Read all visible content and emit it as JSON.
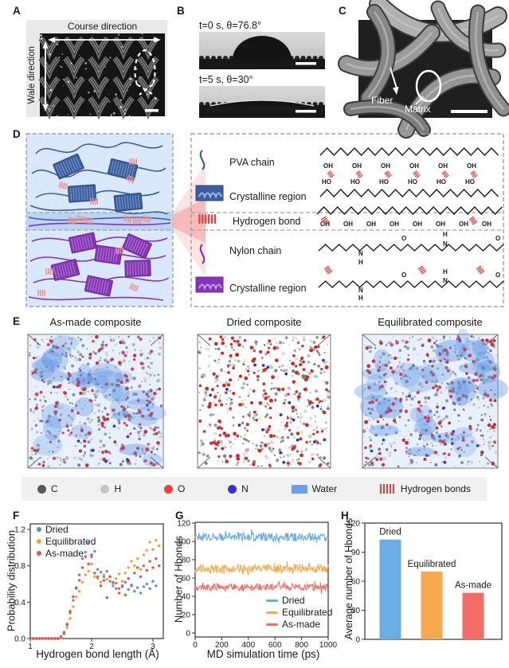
{
  "colors": {
    "dried_blue": "#6aace4",
    "equilibrated_orange": "#f7a94f",
    "asmade_red": "#f26d65",
    "scatter_blue": "#5b8fd4",
    "scatter_orange": "#f0a13a",
    "scatter_red": "#e8534a",
    "pva_blue": "#3d5f9f",
    "nylon_purple": "#8636b4",
    "hbond_pink": "#ef8f93",
    "hbond_red": "#e8413c",
    "water_blue": "#5f96e3",
    "schematic_bg": "#d9e8fa",
    "interface_bg": "#bcd4f2"
  },
  "panels": {
    "A": {
      "label": "A",
      "course_direction": "Course direction",
      "wale_direction": "Wale direction"
    },
    "B": {
      "label": "B",
      "caption_top": "t=0 s, θ=76.8°",
      "caption_bottom": "t=5 s, θ=30°"
    },
    "C": {
      "label": "C",
      "fiber_label": "Fiber",
      "matrix_label": "Matrix"
    },
    "D": {
      "label": "D",
      "legend": [
        {
          "label": "PVA chain"
        },
        {
          "label": "Crystalline region"
        },
        {
          "label": "Hydrogen bond"
        },
        {
          "label": "Nylon chain"
        },
        {
          "label": "Crystalline region"
        }
      ],
      "atom_labels": {
        "oh": "OH",
        "ho": "HO",
        "o": "O",
        "n": "N",
        "h": "H"
      }
    },
    "E": {
      "label": "E",
      "boxes": [
        {
          "title": "As-made composite",
          "water": true
        },
        {
          "title": "Dried composite",
          "water": false
        },
        {
          "title": "Equilibrated composite",
          "water": true
        }
      ],
      "legend": [
        {
          "label": "C",
          "color": "#595959",
          "type": "dot"
        },
        {
          "label": "H",
          "color": "#c6c6c6",
          "type": "dot"
        },
        {
          "label": "O",
          "color": "#e8413c",
          "type": "dot"
        },
        {
          "label": "N",
          "color": "#3333cc",
          "type": "dot"
        },
        {
          "label": "Water",
          "color": "#6b9fe8",
          "type": "rect"
        },
        {
          "label": "Hydrogen bonds",
          "color": "#e8413c",
          "type": "hatch"
        }
      ]
    },
    "F": {
      "label": "F"
    },
    "G": {
      "label": "G"
    },
    "H": {
      "label": "H"
    }
  },
  "chart_data": [
    {
      "id": "F",
      "type": "scatter",
      "xlabel": "Hydrogen bond length (Å)",
      "ylabel": "Probability distribution",
      "xlim": [
        1,
        3.1
      ],
      "ylim": [
        0,
        1.3
      ],
      "xticks": [
        1,
        2,
        3
      ],
      "yticks": [
        0.0,
        0.4,
        0.8,
        1.2
      ],
      "legend_position": "top-left",
      "grid": false,
      "x": [
        1,
        1.05,
        1.1,
        1.15,
        1.2,
        1.25,
        1.3,
        1.35,
        1.4,
        1.45,
        1.5,
        1.55,
        1.6,
        1.65,
        1.7,
        1.75,
        1.8,
        1.85,
        1.9,
        1.95,
        2,
        2.05,
        2.1,
        2.15,
        2.2,
        2.25,
        2.3,
        2.35,
        2.4,
        2.45,
        2.5,
        2.55,
        2.6,
        2.65,
        2.7,
        2.75,
        2.8,
        2.85,
        2.9,
        2.95,
        3,
        3.05,
        3.1
      ],
      "series": [
        {
          "name": "Dried",
          "color": "#5b8fd4",
          "y": [
            0,
            0,
            0,
            0,
            0,
            0,
            0,
            0,
            0,
            0,
            0.02,
            0.07,
            0.15,
            0.28,
            0.42,
            0.55,
            0.7,
            0.88,
            0.95,
            1.05,
            0.9,
            0.96,
            0.76,
            0.73,
            0.68,
            0.74,
            0.63,
            0.58,
            0.61,
            0.55,
            0.57,
            0.62,
            0.54,
            0.59,
            0.52,
            0.56,
            0.5,
            0.57,
            0.6,
            0.55,
            0.63,
            0.58,
            0.8
          ]
        },
        {
          "name": "Equilibrated",
          "color": "#f0a13a",
          "y": [
            0,
            0,
            0,
            0,
            0,
            0,
            0,
            0,
            0,
            0,
            0.01,
            0.05,
            0.12,
            0.22,
            0.35,
            0.46,
            0.52,
            0.62,
            0.7,
            0.74,
            0.82,
            0.68,
            0.66,
            0.62,
            0.7,
            0.65,
            0.68,
            0.6,
            0.66,
            0.71,
            0.63,
            0.72,
            0.78,
            0.85,
            0.8,
            0.88,
            0.76,
            0.92,
            0.97,
            1.06,
            0.98,
            1.08,
            1.02
          ]
        },
        {
          "name": "As-made",
          "color": "#e8534a",
          "y": [
            0,
            0,
            0,
            0,
            0,
            0,
            0,
            0,
            0,
            0,
            0.02,
            0.06,
            0.16,
            0.3,
            0.46,
            0.56,
            0.64,
            0.78,
            0.9,
            0.82,
            0.92,
            0.72,
            0.68,
            0.58,
            0.64,
            0.45,
            0.68,
            0.62,
            0.55,
            0.5,
            0.58,
            0.48,
            0.66,
            0.58,
            0.72,
            0.78,
            0.68,
            0.8,
            0.75,
            0.85,
            0.78,
            0.88,
            0.8
          ]
        }
      ]
    },
    {
      "id": "G",
      "type": "line",
      "xlabel": "MD simulation time (ps)",
      "ylabel": "Number of Hbonds",
      "xlim": [
        0,
        1000
      ],
      "ylim": [
        0,
        120
      ],
      "xticks": [
        0,
        200,
        400,
        600,
        800,
        1000
      ],
      "yticks": [
        0,
        20,
        40,
        60,
        80,
        100,
        120
      ],
      "legend_position": "bottom-right",
      "grid": false,
      "series": [
        {
          "name": "Dried",
          "color": "#6aace4",
          "mean": 105,
          "fluctuation": 4.5
        },
        {
          "name": "Equilibrated",
          "color": "#f7a94f",
          "mean": 70.5,
          "fluctuation": 4.5
        },
        {
          "name": "As-made",
          "color": "#f26d65",
          "mean": 50,
          "fluctuation": 4
        }
      ]
    },
    {
      "id": "H",
      "type": "bar",
      "ylabel": "Average number of Hbonds",
      "ylim": [
        0,
        120
      ],
      "yticks": [
        0,
        30,
        60,
        90,
        120
      ],
      "categories": [
        "Dried",
        "Equilibrated",
        "As-made"
      ],
      "values": [
        103,
        70,
        48
      ],
      "bar_colors": [
        "#6aace4",
        "#f7a94f",
        "#f26d65"
      ]
    }
  ]
}
